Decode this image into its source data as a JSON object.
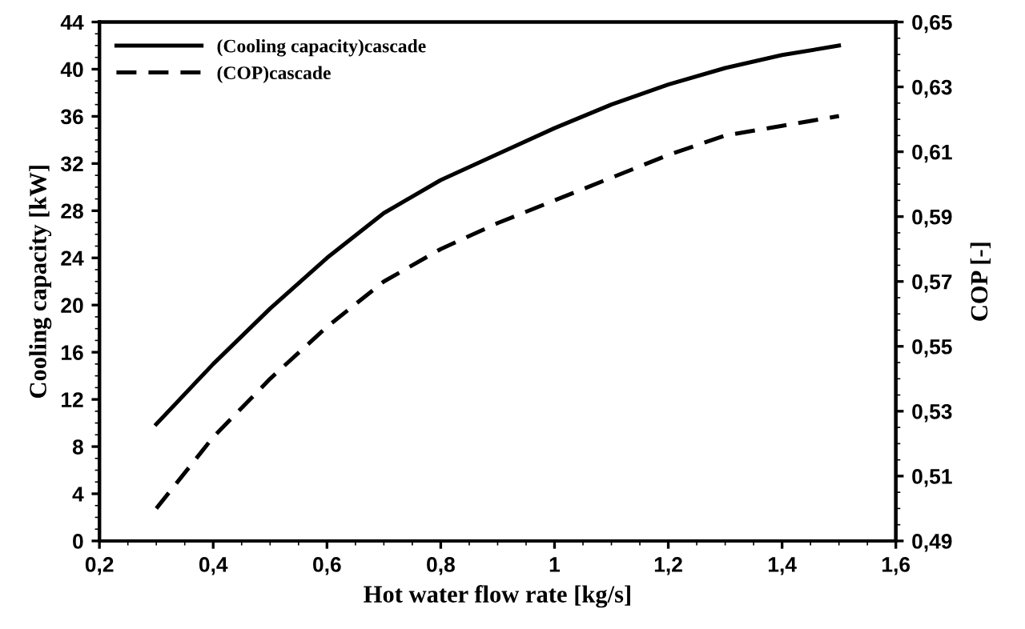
{
  "chart_data": {
    "type": "line",
    "xlabel": "Hot water flow rate [kg/s]",
    "ylabel": "Cooling capacity [kW]",
    "y2label": "COP [-]",
    "x": [
      0.3,
      0.4,
      0.5,
      0.6,
      0.7,
      0.8,
      0.9,
      1.0,
      1.1,
      1.2,
      1.3,
      1.4,
      1.5
    ],
    "series": [
      {
        "name": "(Cooling capacity)cascade",
        "color": "#000000",
        "line_style": "solid",
        "values": [
          9.9,
          15.0,
          19.7,
          24.0,
          27.8,
          30.6,
          32.8,
          35.0,
          37.0,
          38.7,
          40.1,
          41.2,
          42.0
        ]
      },
      {
        "name": "(COP)cascade",
        "color": "#000000",
        "line_style": "dashed",
        "axis": "y2",
        "values": [
          0.5,
          0.522,
          0.54,
          0.556,
          0.57,
          0.58,
          0.588,
          0.595,
          0.602,
          0.609,
          0.615,
          0.618,
          0.621
        ]
      }
    ],
    "xlim": [
      0.2,
      1.6
    ],
    "xticks": [
      {
        "value": 0.2,
        "label": "0,2"
      },
      {
        "value": 0.4,
        "label": "0,4"
      },
      {
        "value": 0.6,
        "label": "0,6"
      },
      {
        "value": 0.8,
        "label": "0,8"
      },
      1,
      {
        "value": 1.2,
        "label": "1,2"
      },
      {
        "value": 1.4,
        "label": "1,4"
      },
      {
        "value": 1.6,
        "label": "1,6"
      }
    ],
    "ylim": [
      0,
      44
    ],
    "yticks": [
      0,
      4,
      8,
      12,
      16,
      20,
      24,
      28,
      32,
      36,
      40,
      44
    ],
    "y2lim": [
      0.49,
      0.65
    ],
    "y2ticks": [
      {
        "value": 0.49,
        "label": "0,49"
      },
      {
        "value": 0.51,
        "label": "0,51"
      },
      {
        "value": 0.53,
        "label": "0,53"
      },
      {
        "value": 0.55,
        "label": "0,55"
      },
      {
        "value": 0.57,
        "label": "0,57"
      },
      {
        "value": 0.59,
        "label": "0,59"
      },
      {
        "value": 0.61,
        "label": "0,61"
      },
      {
        "value": 0.63,
        "label": "0,63"
      },
      {
        "value": 0.65,
        "label": "0,65"
      }
    ],
    "grid": false,
    "legend": "top left",
    "marker": "none"
  }
}
